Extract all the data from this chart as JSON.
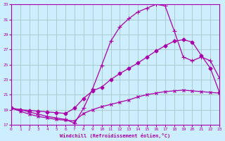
{
  "xlabel": "Windchill (Refroidissement éolien,°C)",
  "bg_color": "#cceeff",
  "grid_color": "#aacccc",
  "line_color": "#aa00aa",
  "xlim": [
    0,
    23
  ],
  "ylim": [
    17,
    33
  ],
  "xticks": [
    0,
    1,
    2,
    3,
    4,
    5,
    6,
    7,
    8,
    9,
    10,
    11,
    12,
    13,
    14,
    15,
    16,
    17,
    18,
    19,
    20,
    21,
    22,
    23
  ],
  "yticks": [
    17,
    19,
    21,
    23,
    25,
    27,
    29,
    31,
    33
  ],
  "curve1_x": [
    0,
    1,
    2,
    3,
    4,
    5,
    6,
    7,
    8,
    9,
    10,
    11,
    12,
    13,
    14,
    15,
    16,
    17,
    18,
    19,
    20,
    21,
    22,
    23
  ],
  "curve1_y": [
    19.2,
    19.0,
    18.7,
    18.4,
    18.1,
    17.9,
    17.7,
    17.2,
    19.2,
    21.8,
    24.9,
    28.1,
    30.0,
    31.1,
    32.0,
    32.5,
    33.0,
    32.8,
    29.5,
    26.0,
    25.5,
    26.0,
    25.5,
    23.2
  ],
  "curve2_x": [
    0,
    1,
    2,
    3,
    4,
    5,
    6,
    7,
    8,
    9,
    10,
    11,
    12,
    13,
    14,
    15,
    16,
    17,
    18,
    19,
    20,
    21,
    22,
    23
  ],
  "curve2_y": [
    19.2,
    19.0,
    18.9,
    18.8,
    18.7,
    18.6,
    18.5,
    19.2,
    20.5,
    21.5,
    22.0,
    23.0,
    23.8,
    24.5,
    25.2,
    26.0,
    26.8,
    27.5,
    28.1,
    28.3,
    28.0,
    26.2,
    24.5,
    21.3
  ],
  "curve3_x": [
    0,
    1,
    2,
    3,
    4,
    5,
    6,
    7,
    8,
    9,
    10,
    11,
    12,
    13,
    14,
    15,
    16,
    17,
    18,
    19,
    20,
    21,
    22,
    23
  ],
  "curve3_y": [
    19.2,
    18.8,
    18.4,
    18.1,
    17.9,
    17.7,
    17.6,
    17.5,
    18.5,
    19.0,
    19.4,
    19.7,
    20.0,
    20.3,
    20.7,
    21.0,
    21.2,
    21.4,
    21.5,
    21.6,
    21.5,
    21.4,
    21.3,
    21.2
  ]
}
